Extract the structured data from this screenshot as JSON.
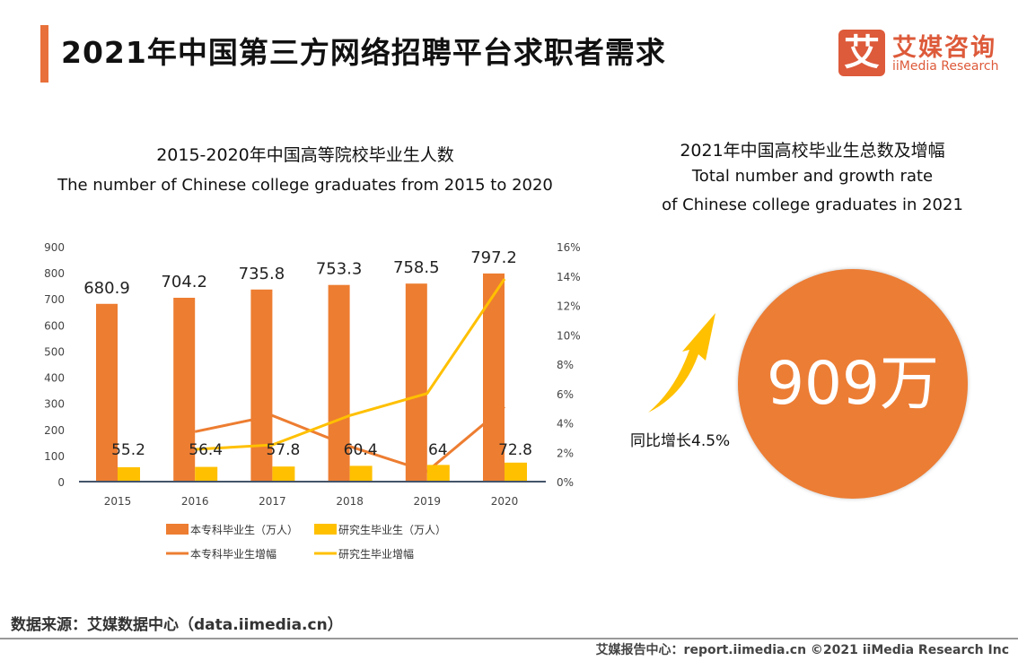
{
  "header": {
    "title": "2021年中国第三方网络招聘平台求职者需求",
    "logo_icon": "艾",
    "logo_cn": "艾媒咨询",
    "logo_en": "iiMedia Research"
  },
  "chart_data": {
    "type": "bar",
    "title": "2015-2020年中国高等院校毕业生人数",
    "subtitle": "The number of Chinese college graduates from 2015 to 2020",
    "categories": [
      "2015",
      "2016",
      "2017",
      "2018",
      "2019",
      "2020"
    ],
    "y_left": {
      "range": [
        0,
        900
      ],
      "ticks": [
        "0",
        "100",
        "200",
        "300",
        "400",
        "500",
        "600",
        "700",
        "800",
        "900"
      ]
    },
    "y_right": {
      "range": [
        0,
        16
      ],
      "ticks": [
        "0%",
        "2%",
        "4%",
        "6%",
        "8%",
        "10%",
        "12%",
        "14%",
        "16%"
      ]
    },
    "series": [
      {
        "name": "本专科毕业生（万人）",
        "type": "bar",
        "axis": "left",
        "color": "#ed7d31",
        "values": [
          680.9,
          704.2,
          735.8,
          753.3,
          758.5,
          797.2
        ],
        "labels": [
          "680.9",
          "704.2",
          "735.8",
          "753.3",
          "758.5",
          "797.2"
        ]
      },
      {
        "name": "研究生毕业生（万人）",
        "type": "bar",
        "axis": "left",
        "color": "#ffc000",
        "values": [
          55.2,
          56.4,
          57.8,
          60.4,
          64,
          72.8
        ],
        "labels": [
          "55.2",
          "56.4",
          "57.8",
          "60.4",
          "64",
          "72.8"
        ]
      },
      {
        "name": "本专科毕业生增幅",
        "type": "line",
        "axis": "right",
        "color": "#ed7d31",
        "values": [
          null,
          3.4,
          4.5,
          2.4,
          0.7,
          5.1
        ]
      },
      {
        "name": "研究生毕业增幅",
        "type": "line",
        "axis": "right",
        "color": "#ffc000",
        "values": [
          null,
          2.2,
          2.5,
          4.5,
          6.0,
          13.8
        ]
      }
    ],
    "legend": "bottom"
  },
  "summary": {
    "title_cn": "2021年中国高校毕业生总数及增幅",
    "title_en_1": "Total number and growth rate",
    "title_en_2": "of Chinese college graduates in 2021",
    "total": "909万",
    "growth": "同比增长4.5%",
    "arrow_color": "#ffc000",
    "circle_color": "#ec7d35"
  },
  "footer": {
    "source": "数据来源：艾媒数据中心（data.iimedia.cn）",
    "copyright": "艾媒报告中心：report.iimedia.cn  ©2021  iiMedia Research  Inc"
  }
}
